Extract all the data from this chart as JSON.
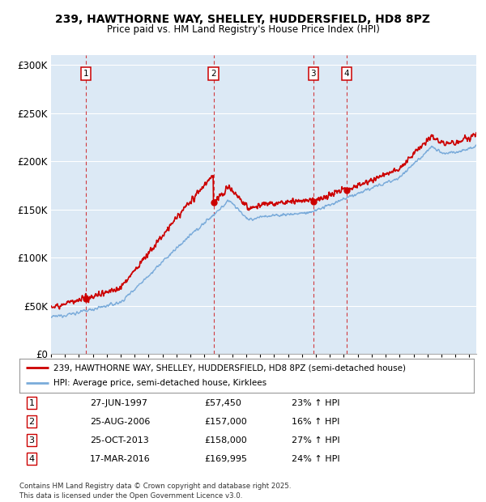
{
  "title": "239, HAWTHORNE WAY, SHELLEY, HUDDERSFIELD, HD8 8PZ",
  "subtitle": "Price paid vs. HM Land Registry's House Price Index (HPI)",
  "background_color": "#ffffff",
  "plot_bg_color": "#dce9f5",
  "grid_color": "#ffffff",
  "transactions": [
    {
      "num": 1,
      "date_year": 1997.49,
      "price": 57450,
      "pct": "23%",
      "label": "27-JUN-1997",
      "price_label": "£57,450"
    },
    {
      "num": 2,
      "date_year": 2006.65,
      "price": 157000,
      "pct": "16%",
      "label": "25-AUG-2006",
      "price_label": "£157,000"
    },
    {
      "num": 3,
      "date_year": 2013.81,
      "price": 158000,
      "pct": "27%",
      "label": "25-OCT-2013",
      "price_label": "£158,000"
    },
    {
      "num": 4,
      "date_year": 2016.21,
      "price": 169995,
      "pct": "24%",
      "label": "17-MAR-2016",
      "price_label": "£169,995"
    }
  ],
  "legend_line1": "239, HAWTHORNE WAY, SHELLEY, HUDDERSFIELD, HD8 8PZ (semi-detached house)",
  "legend_line2": "HPI: Average price, semi-detached house, Kirklees",
  "footer": "Contains HM Land Registry data © Crown copyright and database right 2025.\nThis data is licensed under the Open Government Licence v3.0.",
  "red_color": "#cc0000",
  "blue_color": "#7aabda",
  "ylim": [
    0,
    310000
  ],
  "yticks": [
    0,
    50000,
    100000,
    150000,
    200000,
    250000,
    300000
  ],
  "xstart": 1995.0,
  "xend": 2025.5,
  "fig_width": 6.0,
  "fig_height": 6.2,
  "dpi": 100
}
